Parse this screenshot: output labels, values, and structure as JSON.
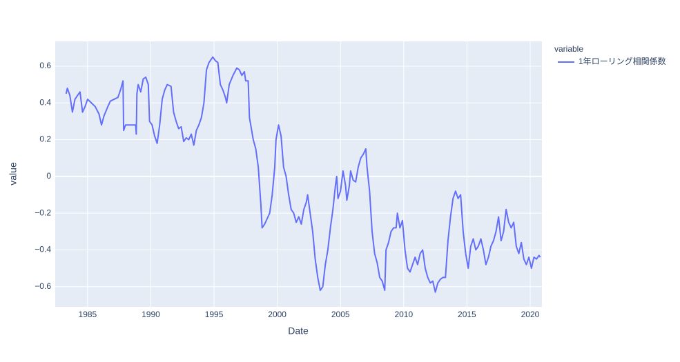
{
  "chart_data": {
    "type": "line",
    "xlabel": "Date",
    "ylabel": "value",
    "legend_title": "variable",
    "grid": true,
    "legend_position": "right",
    "x": [
      1983.3,
      1983.4,
      1983.6,
      1983.8,
      1984.0,
      1984.2,
      1984.4,
      1984.6,
      1984.8,
      1985.0,
      1985.3,
      1985.6,
      1985.9,
      1986.1,
      1986.3,
      1986.6,
      1986.8,
      1987.1,
      1987.4,
      1987.6,
      1987.8,
      1987.85,
      1988.0,
      1988.4,
      1988.8,
      1988.85,
      1988.9,
      1989.0,
      1989.2,
      1989.4,
      1989.6,
      1989.8,
      1989.9,
      1990.1,
      1990.3,
      1990.5,
      1990.7,
      1990.9,
      1991.1,
      1991.3,
      1991.6,
      1991.8,
      1992.0,
      1992.2,
      1992.4,
      1992.6,
      1992.8,
      1993.0,
      1993.2,
      1993.4,
      1993.6,
      1993.8,
      1994.0,
      1994.2,
      1994.4,
      1994.6,
      1994.9,
      1995.1,
      1995.3,
      1995.5,
      1995.7,
      1995.9,
      1996.0,
      1996.2,
      1996.5,
      1996.8,
      1997.0,
      1997.2,
      1997.4,
      1997.5,
      1997.7,
      1997.8,
      1998.1,
      1998.3,
      1998.5,
      1998.7,
      1998.8,
      1999.0,
      1999.2,
      1999.4,
      1999.6,
      1999.8,
      1999.9,
      2000.1,
      2000.3,
      2000.5,
      2000.7,
      2000.9,
      2001.1,
      2001.3,
      2001.5,
      2001.7,
      2001.9,
      2002.1,
      2002.3,
      2002.4,
      2002.6,
      2002.8,
      2003.0,
      2003.2,
      2003.4,
      2003.6,
      2003.8,
      2004.0,
      2004.2,
      2004.4,
      2004.6,
      2004.7,
      2004.8,
      2005.0,
      2005.2,
      2005.4,
      2005.5,
      2005.7,
      2005.8,
      2006.0,
      2006.2,
      2006.4,
      2006.6,
      2006.8,
      2007.0,
      2007.1,
      2007.3,
      2007.5,
      2007.7,
      2007.9,
      2008.1,
      2008.3,
      2008.5,
      2008.6,
      2008.8,
      2009.0,
      2009.2,
      2009.4,
      2009.5,
      2009.7,
      2009.9,
      2010.1,
      2010.3,
      2010.5,
      2010.7,
      2010.9,
      2011.1,
      2011.3,
      2011.5,
      2011.7,
      2011.9,
      2012.1,
      2012.3,
      2012.5,
      2012.7,
      2012.9,
      2013.1,
      2013.3,
      2013.5,
      2013.7,
      2013.9,
      2014.1,
      2014.3,
      2014.5,
      2014.7,
      2014.9,
      2015.1,
      2015.3,
      2015.5,
      2015.7,
      2015.9,
      2016.1,
      2016.3,
      2016.5,
      2016.7,
      2016.9,
      2017.1,
      2017.3,
      2017.5,
      2017.7,
      2017.9,
      2018.1,
      2018.3,
      2018.5,
      2018.7,
      2018.9,
      2019.1,
      2019.3,
      2019.5,
      2019.7,
      2019.9,
      2020.1,
      2020.3,
      2020.5,
      2020.7,
      2020.8
    ],
    "series": [
      {
        "name": "1年ローリング相関係数",
        "color": "#636efa",
        "values": [
          0.45,
          0.48,
          0.44,
          0.35,
          0.42,
          0.44,
          0.46,
          0.35,
          0.38,
          0.42,
          0.4,
          0.38,
          0.34,
          0.28,
          0.33,
          0.38,
          0.41,
          0.42,
          0.43,
          0.47,
          0.52,
          0.25,
          0.28,
          0.28,
          0.28,
          0.23,
          0.45,
          0.5,
          0.46,
          0.53,
          0.54,
          0.5,
          0.3,
          0.28,
          0.22,
          0.18,
          0.28,
          0.42,
          0.47,
          0.5,
          0.49,
          0.35,
          0.3,
          0.26,
          0.27,
          0.19,
          0.21,
          0.2,
          0.23,
          0.17,
          0.25,
          0.28,
          0.32,
          0.4,
          0.58,
          0.62,
          0.65,
          0.63,
          0.62,
          0.5,
          0.47,
          0.43,
          0.4,
          0.5,
          0.55,
          0.59,
          0.58,
          0.55,
          0.57,
          0.52,
          0.52,
          0.32,
          0.2,
          0.15,
          0.05,
          -0.15,
          -0.28,
          -0.26,
          -0.23,
          -0.2,
          -0.1,
          0.05,
          0.2,
          0.28,
          0.22,
          0.05,
          0.0,
          -0.1,
          -0.18,
          -0.2,
          -0.25,
          -0.22,
          -0.26,
          -0.18,
          -0.14,
          -0.1,
          -0.2,
          -0.3,
          -0.45,
          -0.55,
          -0.62,
          -0.6,
          -0.48,
          -0.4,
          -0.28,
          -0.18,
          -0.05,
          0.0,
          -0.12,
          -0.08,
          0.03,
          -0.05,
          -0.13,
          -0.05,
          0.03,
          -0.02,
          -0.03,
          0.05,
          0.1,
          0.12,
          0.15,
          0.05,
          -0.08,
          -0.3,
          -0.42,
          -0.47,
          -0.55,
          -0.57,
          -0.62,
          -0.4,
          -0.36,
          -0.3,
          -0.28,
          -0.28,
          -0.2,
          -0.28,
          -0.24,
          -0.4,
          -0.5,
          -0.52,
          -0.48,
          -0.44,
          -0.48,
          -0.42,
          -0.4,
          -0.5,
          -0.55,
          -0.58,
          -0.57,
          -0.63,
          -0.58,
          -0.56,
          -0.55,
          -0.55,
          -0.35,
          -0.22,
          -0.12,
          -0.08,
          -0.12,
          -0.1,
          -0.3,
          -0.42,
          -0.5,
          -0.38,
          -0.34,
          -0.4,
          -0.38,
          -0.34,
          -0.4,
          -0.48,
          -0.44,
          -0.38,
          -0.35,
          -0.3,
          -0.22,
          -0.35,
          -0.3,
          -0.18,
          -0.25,
          -0.28,
          -0.25,
          -0.38,
          -0.42,
          -0.36,
          -0.45,
          -0.48,
          -0.44,
          -0.5,
          -0.44,
          -0.45,
          -0.43,
          -0.44
        ]
      }
    ],
    "xlim": [
      1982.44,
      2020.93
    ],
    "xticks": [
      1985,
      1990,
      1995,
      2000,
      2005,
      2010,
      2015,
      2020
    ],
    "ylim": [
      -0.71,
      0.735
    ],
    "yticks": [
      {
        "value": -0.6,
        "label": "−0.6"
      },
      {
        "value": -0.4,
        "label": "−0.4"
      },
      {
        "value": -0.2,
        "label": "−0.2"
      },
      0,
      0.2,
      0.4,
      0.6
    ]
  }
}
